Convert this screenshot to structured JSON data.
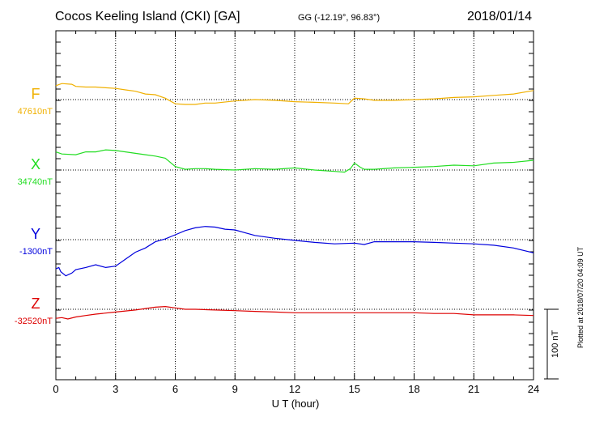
{
  "header": {
    "title": "Cocos Keeling Island (CKI)  [GA]",
    "coords": "GG (-12.19°,  96.83°)",
    "date": "2018/01/14"
  },
  "footer": {
    "plotted": "Plotted at 2018/07/20 04:09 UT",
    "scale_label": "100 nT"
  },
  "chart_data": {
    "type": "line",
    "xlabel": "U T (hour)",
    "xlim": [
      0,
      24
    ],
    "xticks": [
      0,
      3,
      6,
      9,
      12,
      15,
      18,
      21,
      24
    ],
    "grid": true,
    "scale_bar_nT": 100,
    "series": [
      {
        "name": "F",
        "baseline_label": "47610nT",
        "color": "#f0b000",
        "x": [
          0,
          0.3,
          0.8,
          1,
          1.5,
          2,
          2.5,
          3,
          3.5,
          4,
          4.5,
          5,
          5.5,
          6,
          6.5,
          7,
          7.5,
          8,
          9,
          10,
          11,
          12,
          13,
          14,
          14.7,
          15,
          15.5,
          16,
          17,
          18,
          19,
          20,
          21,
          22,
          23,
          24
        ],
        "y": [
          20,
          23,
          22,
          19,
          18,
          18,
          17,
          16,
          14,
          12,
          8,
          7,
          2,
          -6,
          -7,
          -7,
          -5,
          -5,
          -2,
          0,
          -1,
          -3,
          -4,
          -5,
          -6,
          2,
          1,
          -1,
          -1,
          0,
          1,
          3,
          4,
          6,
          8,
          13
        ]
      },
      {
        "name": "X",
        "baseline_label": "34740nT",
        "color": "#22dd22",
        "x": [
          0,
          0.3,
          1,
          1.5,
          2,
          2.5,
          3,
          3.5,
          4,
          4.5,
          5,
          5.5,
          6,
          6.5,
          7,
          7.5,
          8,
          9,
          10,
          11,
          12,
          13,
          14,
          14.5,
          14.8,
          15,
          15.3,
          15.5,
          16,
          17,
          18,
          19,
          20,
          21,
          22,
          23,
          24
        ],
        "y": [
          26,
          23,
          22,
          26,
          26,
          29,
          28,
          26,
          24,
          22,
          20,
          17,
          5,
          1,
          2,
          2,
          1,
          0,
          2,
          1,
          3,
          0,
          -2,
          -3,
          2,
          10,
          4,
          1,
          1,
          3,
          4,
          5,
          7,
          6,
          10,
          11,
          14
        ]
      },
      {
        "name": "Y",
        "baseline_label": "-1300nT",
        "color": "#0000dd",
        "x": [
          0,
          0.15,
          0.25,
          0.5,
          0.8,
          1,
          1.5,
          2,
          2.5,
          3,
          3.5,
          4,
          4.5,
          5,
          5.5,
          6,
          6.5,
          7,
          7.5,
          8,
          8.5,
          9,
          9.5,
          10,
          11,
          12,
          13,
          14,
          15,
          15.5,
          16,
          17,
          18,
          19,
          20,
          21,
          22,
          23,
          24
        ],
        "y": [
          -42,
          -40,
          -46,
          -52,
          -48,
          -43,
          -40,
          -36,
          -40,
          -38,
          -28,
          -18,
          -12,
          -3,
          1,
          7,
          13,
          17,
          19,
          18,
          15,
          14,
          10,
          6,
          2,
          -1,
          -4,
          -6,
          -5,
          -7,
          -3,
          -3,
          -3,
          -4,
          -5,
          -6,
          -8,
          -12,
          -19
        ]
      },
      {
        "name": "Z",
        "baseline_label": "-32520nT",
        "color": "#dd0000",
        "x": [
          0,
          0.3,
          0.6,
          1,
          1.5,
          2,
          3,
          4,
          4.5,
          5,
          5.5,
          6,
          6.5,
          7,
          8,
          9,
          10,
          11,
          12,
          13,
          14,
          15,
          16,
          17,
          18,
          19,
          20,
          21,
          22,
          23,
          24
        ],
        "y": [
          -13,
          -12,
          -14,
          -11,
          -9,
          -7,
          -4,
          -1,
          1,
          3,
          4,
          2,
          0,
          0,
          -1,
          -2,
          -3,
          -4,
          -5,
          -5,
          -5,
          -5,
          -5,
          -5,
          -5,
          -6,
          -6,
          -8,
          -8,
          -8,
          -9
        ]
      }
    ]
  }
}
